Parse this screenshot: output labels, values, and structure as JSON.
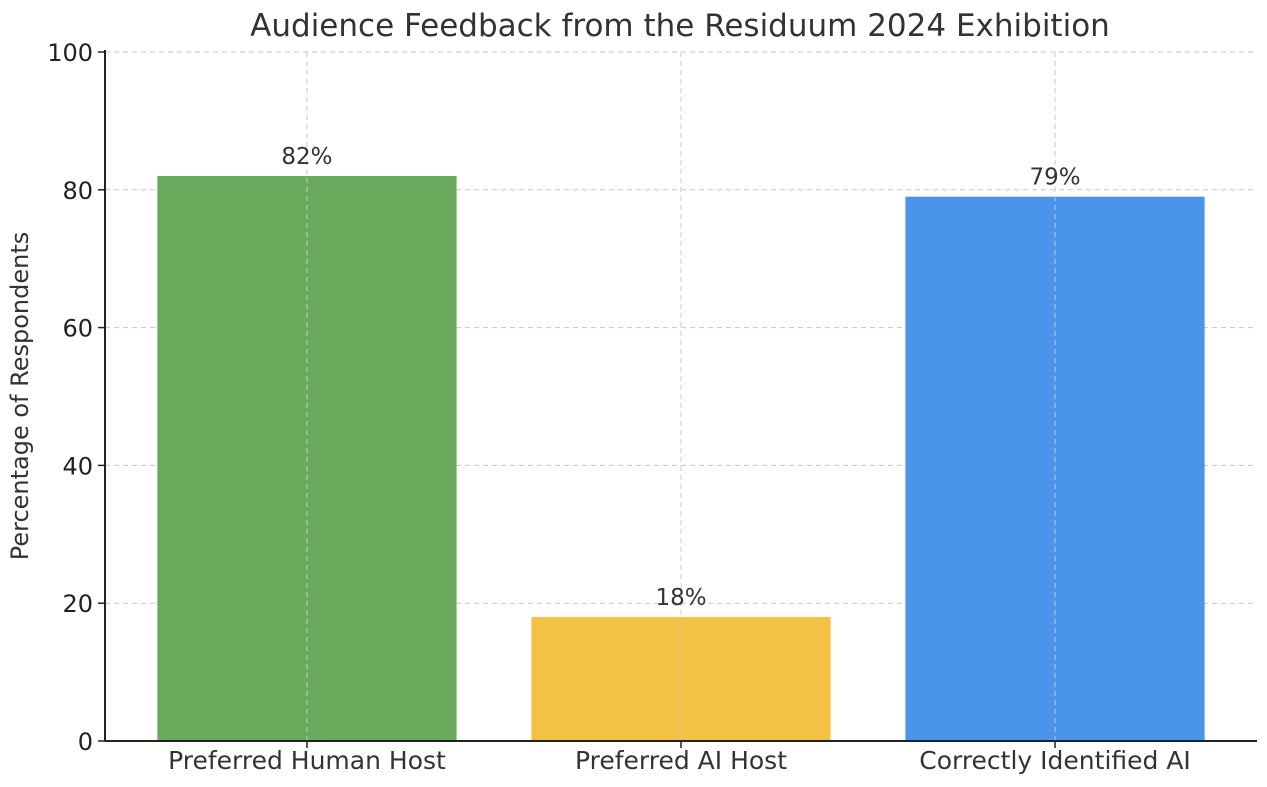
{
  "chart_data": {
    "type": "bar",
    "title": "Audience Feedback from the Residuum 2024 Exhibition",
    "xlabel": "",
    "ylabel": "Percentage of Respondents",
    "categories": [
      "Preferred Human Host",
      "Preferred AI Host",
      "Correctly Identified AI"
    ],
    "values": [
      82,
      18,
      79
    ],
    "data_labels": [
      "82%",
      "18%",
      "79%"
    ],
    "colors": [
      "#6aaa5c",
      "#f3c244",
      "#4a95ea"
    ],
    "ylim": [
      0,
      100
    ],
    "yticks": [
      "0",
      "20",
      "40",
      "60",
      "80",
      "100"
    ],
    "grid": true,
    "legend": "none"
  }
}
